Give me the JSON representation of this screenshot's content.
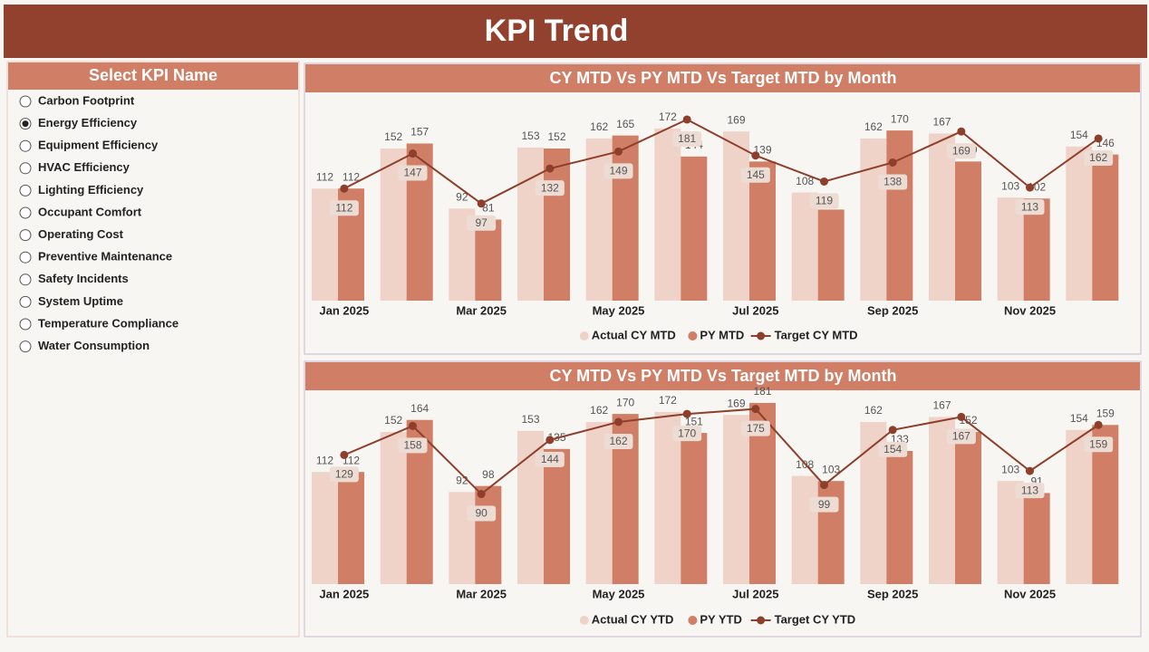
{
  "header": {
    "title": "KPI Trend"
  },
  "slicer": {
    "title": "Select KPI Name",
    "options": [
      "Carbon Footprint",
      "Energy Efficiency",
      "Equipment Efficiency",
      "HVAC Efficiency",
      "Lighting Efficiency",
      "Occupant Comfort",
      "Operating Cost",
      "Preventive Maintenance",
      "Safety Incidents",
      "System Uptime",
      "Temperature Compliance",
      "Water Consumption"
    ],
    "selected_index": 1
  },
  "chart_data": [
    {
      "type": "bar",
      "title": "CY MTD Vs PY MTD Vs Target MTD by Month",
      "categories": [
        "Jan 2025",
        null,
        "Mar 2025",
        null,
        "May 2025",
        null,
        "Jul 2025",
        null,
        "Sep 2025",
        null,
        "Nov 2025",
        null
      ],
      "series": [
        {
          "name": "Actual CY MTD",
          "color": "#efd3c8",
          "values": [
            112,
            152,
            92,
            153,
            162,
            172,
            169,
            108,
            162,
            167,
            103,
            154
          ]
        },
        {
          "name": "PY MTD",
          "color": "#d07f66",
          "values": [
            112,
            157,
            81,
            152,
            165,
            144,
            139,
            91,
            170,
            139,
            102,
            146
          ]
        },
        {
          "name": "Target CY MTD",
          "color": "#8e3f2c",
          "type": "line",
          "values": [
            112,
            147,
            97,
            132,
            149,
            181,
            145,
            119,
            138,
            169,
            113,
            162
          ]
        }
      ],
      "ylim": [
        0,
        190
      ],
      "legend": "bottom"
    },
    {
      "type": "bar",
      "title": "CY MTD Vs PY MTD Vs Target MTD by Month",
      "categories": [
        "Jan 2025",
        null,
        "Mar 2025",
        null,
        "May 2025",
        null,
        "Jul 2025",
        null,
        "Sep 2025",
        null,
        "Nov 2025",
        null
      ],
      "series": [
        {
          "name": "Actual CY YTD",
          "color": "#efd3c8",
          "values": [
            112,
            152,
            92,
            153,
            162,
            172,
            169,
            108,
            162,
            167,
            103,
            154
          ]
        },
        {
          "name": "PY YTD",
          "color": "#d07f66",
          "values": [
            112,
            164,
            98,
            135,
            170,
            151,
            181,
            103,
            133,
            152,
            91,
            159
          ]
        },
        {
          "name": "Target CY YTD",
          "color": "#8e3f2c",
          "type": "line",
          "values": [
            129,
            158,
            90,
            144,
            162,
            170,
            175,
            99,
            154,
            167,
            113,
            159
          ]
        }
      ],
      "ylim": [
        0,
        190
      ],
      "legend": "bottom"
    }
  ]
}
